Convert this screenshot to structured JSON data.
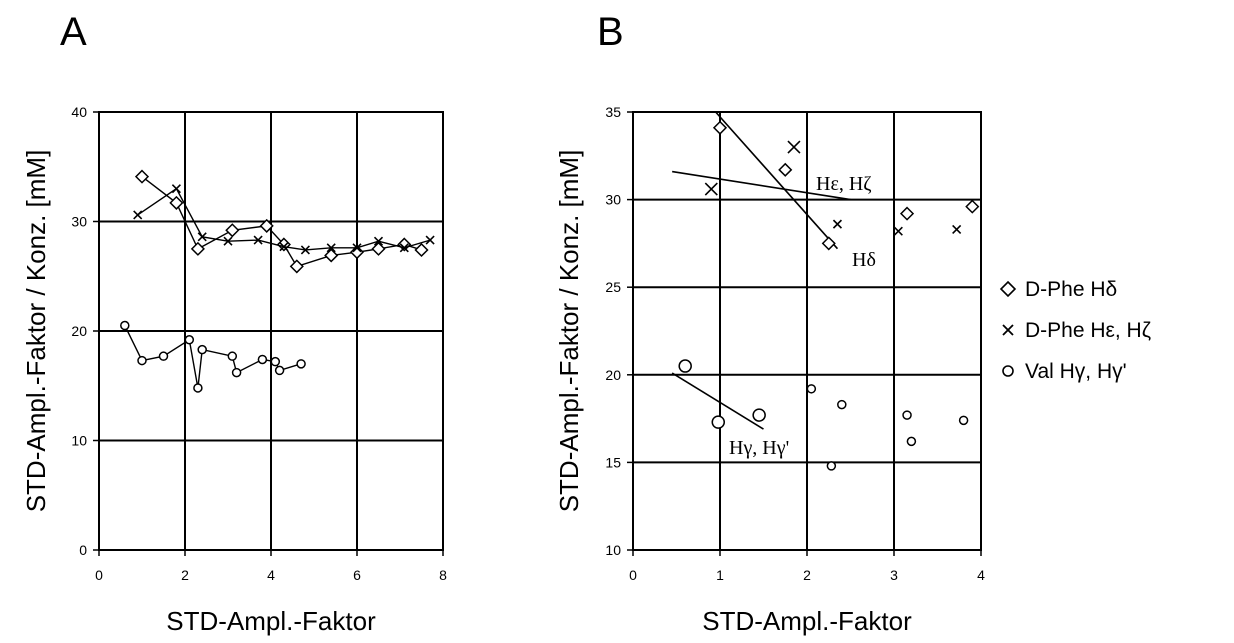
{
  "panels": [
    {
      "letter": "A"
    },
    {
      "letter": "B"
    }
  ],
  "legend": [
    {
      "marker": "diamond",
      "label": "D-Phe Hδ"
    },
    {
      "marker": "cross",
      "label": "D-Phe Hε, Hζ"
    },
    {
      "marker": "circle",
      "label": "Val Hγ, Hγ'"
    }
  ],
  "chart_data": [
    {
      "type": "line",
      "panel": "A",
      "xlabel": "STD-Ampl.-Faktor",
      "ylabel": "STD-Ampl.-Faktor / Konz. [mM]",
      "xlim": [
        0,
        8
      ],
      "ylim": [
        0,
        40
      ],
      "xticks": [
        0,
        2,
        4,
        6,
        8
      ],
      "yticks": [
        0,
        10,
        20,
        30,
        40
      ],
      "grid": true,
      "series": [
        {
          "name": "D-Phe Hδ",
          "marker": "diamond",
          "x": [
            1.0,
            1.8,
            2.3,
            3.1,
            3.9,
            4.3,
            4.6,
            5.4,
            6.0,
            6.5,
            7.1,
            7.5
          ],
          "y": [
            34.1,
            31.7,
            27.5,
            29.2,
            29.6,
            27.9,
            25.9,
            26.9,
            27.2,
            27.5,
            27.9,
            27.4
          ]
        },
        {
          "name": "D-Phe Hε, Hζ",
          "marker": "cross",
          "x": [
            0.9,
            1.8,
            2.4,
            3.0,
            3.7,
            4.3,
            4.8,
            5.4,
            6.0,
            6.5,
            7.1,
            7.7
          ],
          "y": [
            30.6,
            33.0,
            28.6,
            28.2,
            28.3,
            27.7,
            27.4,
            27.6,
            27.6,
            28.2,
            27.6,
            28.3
          ]
        },
        {
          "name": "Val Hγ, Hγ'",
          "marker": "circle",
          "x": [
            0.6,
            1.0,
            1.5,
            2.1,
            2.3,
            2.4,
            3.1,
            3.2,
            3.8,
            4.1,
            4.2,
            4.7
          ],
          "y": [
            20.5,
            17.3,
            17.7,
            19.2,
            14.8,
            18.3,
            17.7,
            16.2,
            17.4,
            17.2,
            16.4,
            17.0
          ]
        }
      ]
    },
    {
      "type": "scatter",
      "panel": "B",
      "xlabel": "STD-Ampl.-Faktor",
      "ylabel": "STD-Ampl.-Faktor / Konz. [mM]",
      "xlim": [
        0,
        4
      ],
      "ylim": [
        10,
        35
      ],
      "xticks": [
        0,
        1,
        2,
        3,
        4
      ],
      "yticks": [
        10,
        15,
        20,
        25,
        30,
        35
      ],
      "grid": true,
      "series": [
        {
          "name": "D-Phe Hδ",
          "marker": "diamond",
          "x": [
            1.0,
            1.75,
            2.25,
            3.15,
            3.9
          ],
          "y": [
            34.1,
            31.7,
            27.5,
            29.2,
            29.6
          ]
        },
        {
          "name": "D-Phe Hε, Hζ",
          "marker": "cross",
          "x": [
            0.9,
            1.85,
            2.35,
            3.05,
            3.72
          ],
          "y": [
            30.6,
            33.0,
            28.6,
            28.2,
            28.3
          ]
        },
        {
          "name": "Val Hγ, Hγ'",
          "marker": "circle",
          "x": [
            0.6,
            0.98,
            1.45,
            2.05,
            2.28,
            2.4,
            3.15,
            3.2,
            3.8
          ],
          "y": [
            20.5,
            17.3,
            17.7,
            19.2,
            14.8,
            18.3,
            17.7,
            16.2,
            17.4
          ]
        }
      ],
      "trendlines": [
        {
          "label": "Hδ",
          "from": [
            0.95,
            35.0
          ],
          "to": [
            2.35,
            27.2
          ]
        },
        {
          "label": "Hε, Hζ",
          "from": [
            0.45,
            31.6
          ],
          "to": [
            2.5,
            30.0
          ]
        },
        {
          "label": "Hγ, Hγ'",
          "from": [
            0.45,
            20.1
          ],
          "to": [
            1.5,
            16.9
          ]
        }
      ]
    }
  ]
}
